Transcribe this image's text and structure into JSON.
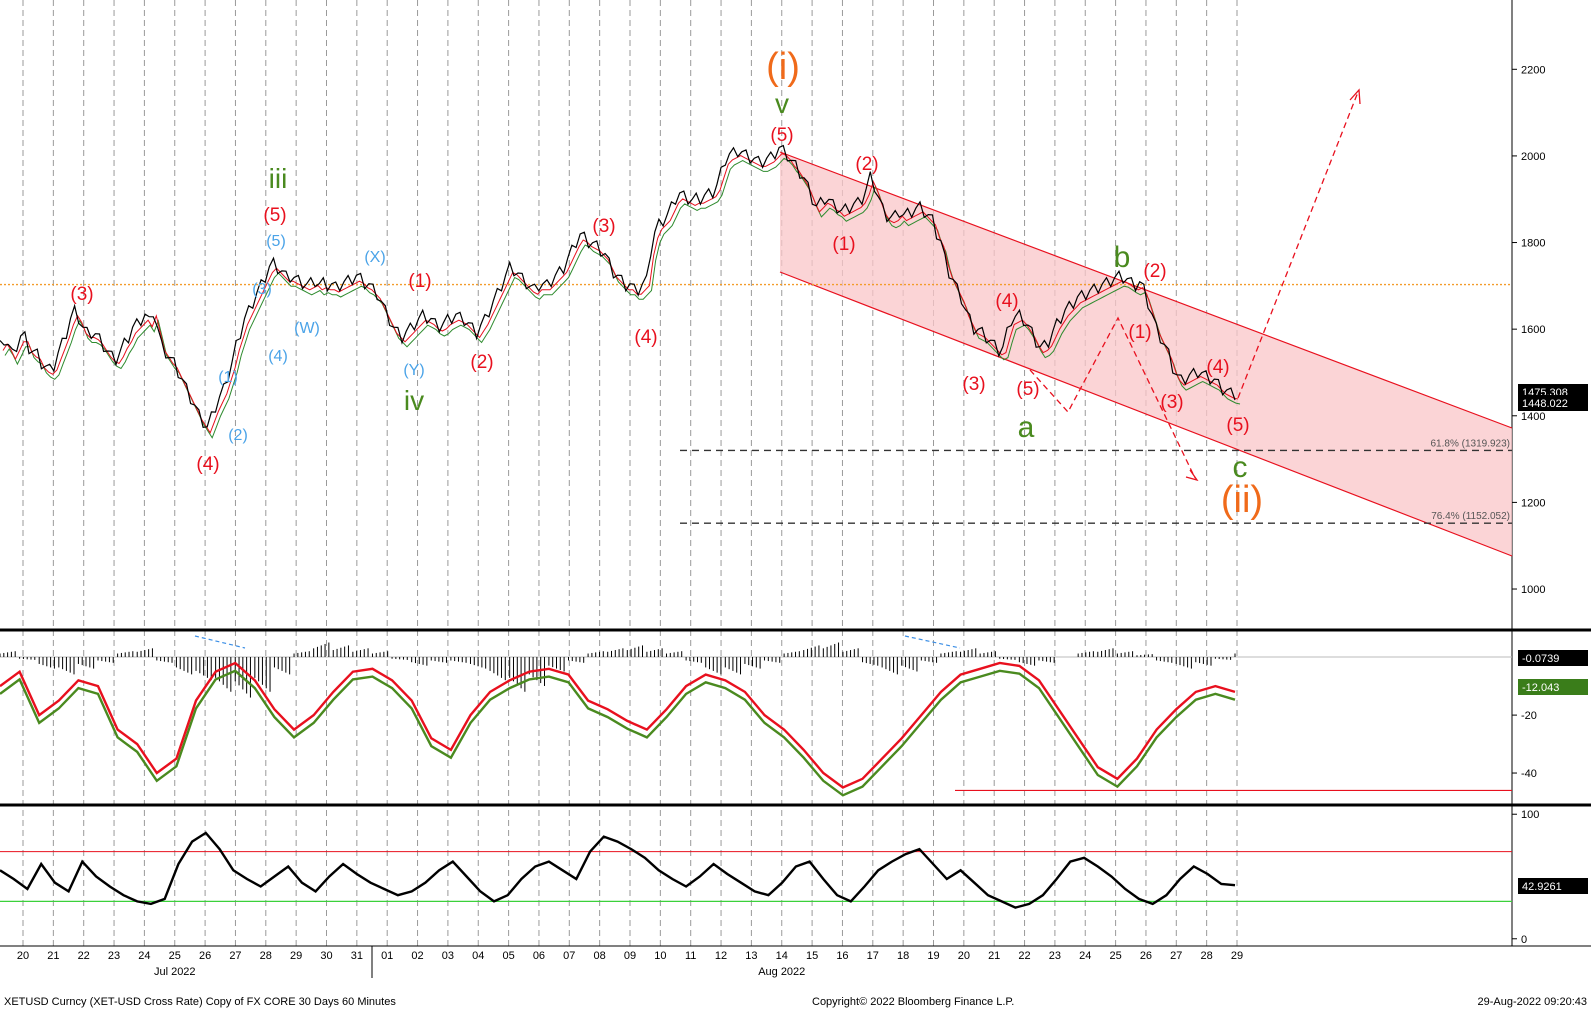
{
  "chart_data": {
    "type": "line",
    "title": "",
    "instrument_line": "XETUSD Curncy (XET-USD Cross Rate) Copy of FX CORE 30 Days 60 Minutes",
    "copyright": "Copyright© 2022 Bloomberg Finance L.P.",
    "timestamp": "29-Aug-2022 09:20:43",
    "x_days": [
      "20",
      "21",
      "22",
      "23",
      "24",
      "25",
      "26",
      "27",
      "28",
      "29",
      "30",
      "31",
      "01",
      "02",
      "03",
      "04",
      "05",
      "06",
      "07",
      "08",
      "09",
      "10",
      "11",
      "12",
      "13",
      "14",
      "15",
      "16",
      "17",
      "18",
      "19",
      "20",
      "21",
      "22",
      "23",
      "24",
      "25",
      "26",
      "27",
      "28",
      "29"
    ],
    "months": [
      {
        "label": "Jul 2022",
        "day_index": 5
      },
      {
        "label": "Aug 2022",
        "day_index": 25
      }
    ],
    "price_panel": {
      "ylim": [
        910,
        2360
      ],
      "yticks": [
        1000,
        1200,
        1400,
        1600,
        1800,
        2000,
        2200
      ],
      "series": [
        {
          "name": "XETUSD",
          "color": "#000000",
          "values": [
            1560,
            1575,
            1560,
            1540,
            1560,
            1580,
            1580,
            1555,
            1545,
            1540,
            1520,
            1510,
            1505,
            1515,
            1540,
            1565,
            1590,
            1620,
            1640,
            1625,
            1600,
            1590,
            1590,
            1585,
            1575,
            1560,
            1545,
            1535,
            1530,
            1545,
            1565,
            1580,
            1600,
            1610,
            1620,
            1630,
            1615,
            1640,
            1600,
            1560,
            1545,
            1530,
            1520,
            1500,
            1480,
            1460,
            1440,
            1420,
            1400,
            1385,
            1370,
            1395,
            1420,
            1440,
            1460,
            1490,
            1520,
            1560,
            1590,
            1620,
            1640,
            1660,
            1680,
            1700,
            1720,
            1740,
            1750,
            1740,
            1730,
            1720,
            1720,
            1715,
            1710,
            1705,
            1700,
            1705,
            1710,
            1700,
            1705,
            1700,
            1700,
            1695,
            1700,
            1705,
            1710,
            1715,
            1720,
            1715,
            1705,
            1700,
            1690,
            1680,
            1660,
            1640,
            1620,
            1600,
            1590,
            1580,
            1590,
            1600,
            1610,
            1620,
            1630,
            1625,
            1620,
            1610,
            1605,
            1610,
            1620,
            1625,
            1630,
            1625,
            1620,
            1610,
            1600,
            1590,
            1605,
            1620,
            1640,
            1660,
            1680,
            1700,
            1720,
            1740,
            1735,
            1725,
            1715,
            1705,
            1695,
            1690,
            1700,
            1700,
            1700,
            1710,
            1720,
            1730,
            1740,
            1760,
            1780,
            1800,
            1815,
            1810,
            1800,
            1795,
            1790,
            1780,
            1770,
            1750,
            1730,
            1720,
            1710,
            1700,
            1700,
            1690,
            1690,
            1700,
            1710,
            1780,
            1820,
            1840,
            1850,
            1860,
            1880,
            1900,
            1910,
            1905,
            1900,
            1895,
            1900,
            1900,
            1905,
            1910,
            1915,
            1930,
            1960,
            1990,
            2000,
            2005,
            2010,
            2005,
            2000,
            1995,
            1990,
            1985,
            1985,
            1990,
            1995,
            2005,
            2015,
            2010,
            2000,
            1985,
            1975,
            1960,
            1945,
            1925,
            1900,
            1880,
            1890,
            1900,
            1895,
            1885,
            1880,
            1870,
            1875,
            1880,
            1885,
            1890,
            1900,
            1920,
            1950,
            1930,
            1900,
            1875,
            1860,
            1855,
            1860,
            1870,
            1860,
            1865,
            1870,
            1875,
            1880,
            1870,
            1860,
            1850,
            1820,
            1800,
            1760,
            1730,
            1710,
            1690,
            1670,
            1640,
            1620,
            1600,
            1595,
            1590,
            1580,
            1570,
            1560,
            1550,
            1555,
            1590,
            1620,
            1625,
            1630,
            1620,
            1605,
            1590,
            1570,
            1555,
            1560,
            1570,
            1590,
            1610,
            1625,
            1640,
            1650,
            1660,
            1670,
            1675,
            1680,
            1685,
            1690,
            1695,
            1700,
            1705,
            1710,
            1715,
            1720,
            1718,
            1712,
            1705,
            1700,
            1705,
            1690,
            1660,
            1630,
            1600,
            1580,
            1560,
            1540,
            1510,
            1490,
            1480,
            1485,
            1490,
            1495,
            1500,
            1495,
            1490,
            1485,
            1480,
            1470,
            1460,
            1455,
            1450,
            1448
          ]
        }
      ],
      "overlays": {
        "resistance_level": 1703,
        "fib_levels": [
          {
            "label": "61.8% (1319.923)",
            "value": 1319.923
          },
          {
            "label": "76.4% (1152.052)",
            "value": 1152.052
          }
        ]
      },
      "price_tags": [
        {
          "label": "1475.308",
          "color": "#000000"
        },
        {
          "label": "1448.022",
          "color": "#000000"
        }
      ],
      "wave_labels": [
        "(3)",
        "(4)",
        "(1)",
        "(2)",
        "(3)",
        "(4)",
        "(5)",
        "(5)",
        "iii",
        "(X)",
        "(W)",
        "(Y)",
        "iv",
        "(1)",
        "(2)",
        "(3)",
        "(4)",
        "(5)",
        "v",
        "(i)",
        "(2)",
        "(1)",
        "(4)",
        "(3)",
        "(5)",
        "a",
        "b",
        "(2)",
        "(1)",
        "(3)",
        "(4)",
        "(5)",
        "c",
        "(ii)"
      ]
    },
    "oscillator_panel": {
      "ylim": [
        -50,
        8
      ],
      "yticks": [
        -20,
        -40
      ],
      "tags": [
        {
          "label": "-0.0739",
          "color": "#000000"
        },
        {
          "label": "-12.043",
          "color": "#3a7d1a"
        }
      ],
      "series": [
        {
          "name": "histogram",
          "color": "#000000",
          "values": [
            2,
            -1,
            -4,
            -6,
            -4,
            -2,
            2,
            3,
            -2,
            -6,
            -8,
            -12,
            -14,
            -12,
            -6,
            2,
            5,
            4,
            3,
            2,
            -1,
            -3,
            -2,
            -2,
            -4,
            -8,
            -12,
            -10,
            -5,
            -2,
            2,
            3,
            4,
            3,
            2,
            -2,
            -6,
            -6,
            -4,
            -2,
            2,
            4,
            5,
            3,
            -3,
            -6,
            -5,
            -2,
            2,
            3,
            2,
            -1,
            -3,
            -2,
            0,
            2,
            3,
            2,
            1,
            -2,
            -4,
            -3,
            -1,
            2
          ]
        },
        {
          "name": "red-line",
          "color": "#e8101e",
          "values": [
            -10,
            -5,
            -20,
            -15,
            -8,
            -10,
            -25,
            -30,
            -40,
            -35,
            -15,
            -5,
            -2,
            -8,
            -18,
            -25,
            -20,
            -12,
            -5,
            -4,
            -8,
            -15,
            -28,
            -32,
            -20,
            -12,
            -8,
            -5,
            -4,
            -6,
            -15,
            -18,
            -22,
            -25,
            -18,
            -10,
            -6,
            -8,
            -12,
            -20,
            -25,
            -32,
            -40,
            -45,
            -42,
            -35,
            -28,
            -20,
            -12,
            -6,
            -4,
            -2,
            -3,
            -8,
            -18,
            -28,
            -38,
            -42,
            -35,
            -25,
            -18,
            -12,
            -10,
            -12
          ]
        },
        {
          "name": "green-line",
          "color": "#4a8a1f",
          "values": [
            -12,
            -7,
            -22,
            -17,
            -10,
            -12,
            -27,
            -32,
            -42,
            -37,
            -17,
            -7,
            -4,
            -10,
            -20,
            -27,
            -22,
            -14,
            -7,
            -6,
            -10,
            -17,
            -30,
            -34,
            -22,
            -14,
            -10,
            -7,
            -6,
            -8,
            -17,
            -20,
            -24,
            -27,
            -20,
            -12,
            -8,
            -10,
            -14,
            -22,
            -27,
            -34,
            -42,
            -47,
            -44,
            -37,
            -30,
            -22,
            -14,
            -8,
            -6,
            -4,
            -5,
            -10,
            -20,
            -30,
            -40,
            -44,
            -37,
            -27,
            -20,
            -14,
            -12,
            -14
          ]
        }
      ],
      "support_level": -46
    },
    "rsi_panel": {
      "ylim": [
        -5,
        105
      ],
      "yticks": [
        0,
        100
      ],
      "upper_band": 70,
      "lower_band": 30,
      "tag": {
        "label": "42.9261",
        "color": "#000000"
      },
      "series": [
        {
          "name": "RSI",
          "color": "#000000",
          "values": [
            55,
            48,
            40,
            60,
            45,
            38,
            62,
            50,
            42,
            35,
            30,
            28,
            32,
            60,
            78,
            85,
            72,
            55,
            48,
            42,
            50,
            58,
            45,
            38,
            50,
            60,
            52,
            45,
            40,
            35,
            38,
            45,
            55,
            62,
            50,
            38,
            30,
            35,
            48,
            58,
            62,
            55,
            48,
            70,
            82,
            78,
            72,
            65,
            55,
            48,
            42,
            50,
            60,
            52,
            45,
            38,
            35,
            45,
            58,
            62,
            48,
            35,
            30,
            42,
            55,
            62,
            68,
            72,
            60,
            48,
            55,
            45,
            35,
            30,
            25,
            28,
            35,
            48,
            62,
            65,
            58,
            50,
            40,
            32,
            28,
            35,
            48,
            58,
            52,
            44,
            43
          ]
        }
      ]
    }
  },
  "ui": {
    "footer_left": "XETUSD Curncy (XET-USD Cross Rate) Copy of FX CORE 30 Days 60 Minutes",
    "footer_mid": "Copyright© 2022 Bloomberg Finance L.P.",
    "footer_right": "29-Aug-2022 09:20:43"
  }
}
